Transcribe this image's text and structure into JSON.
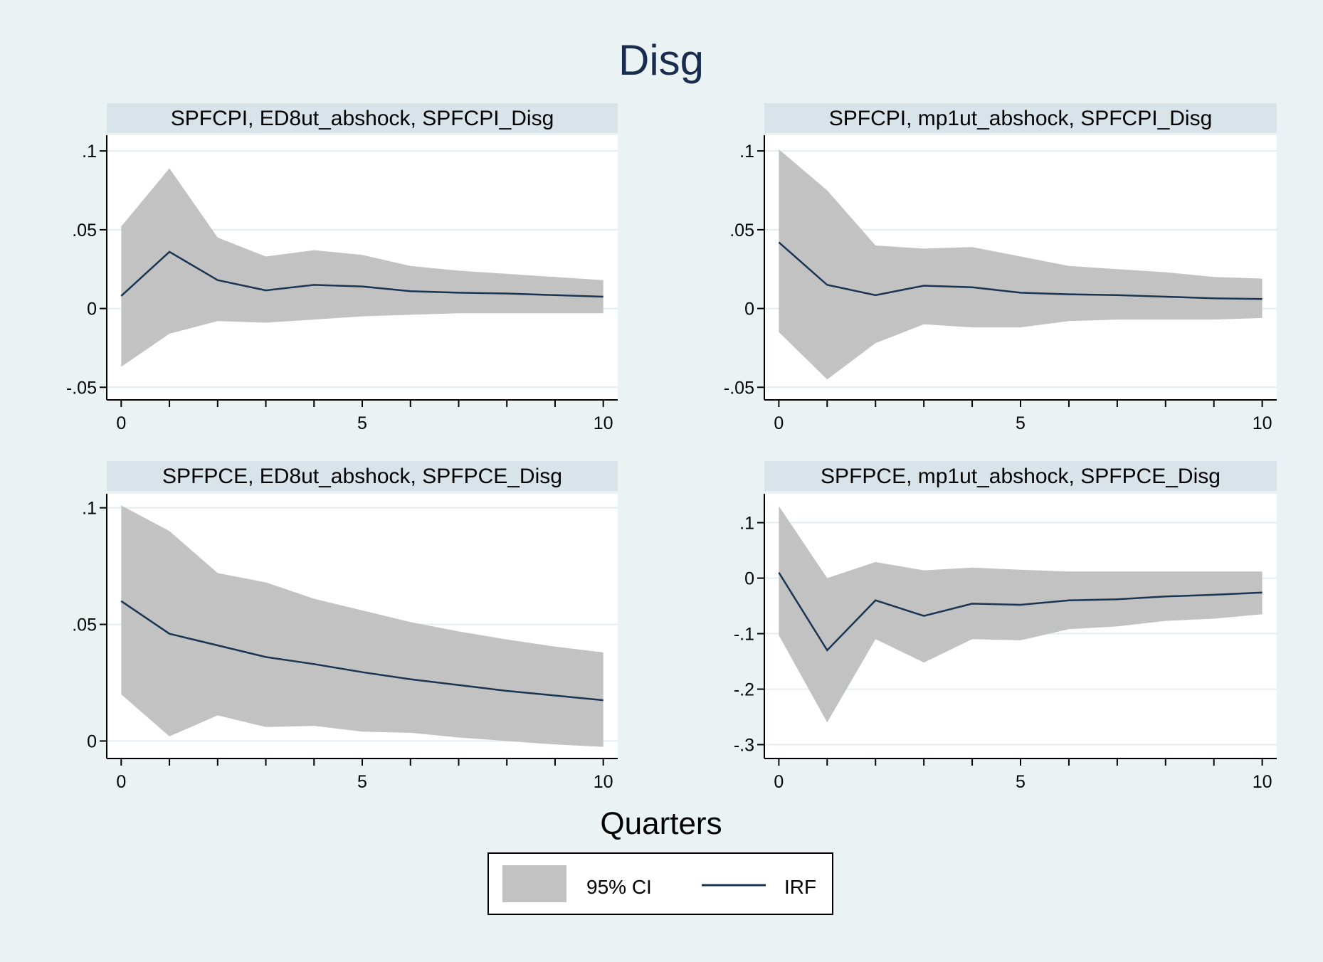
{
  "figure": {
    "title": "Disg",
    "xlabel": "Quarters",
    "legend": {
      "ci_label": "95% CI",
      "irf_label": "IRF"
    }
  },
  "colors": {
    "background": "#eaf2f3",
    "plot_background": "#ffffff",
    "panel_header": "#d8e4ea",
    "ci_band": "#c2c2c2",
    "irf_line": "#1a3552",
    "gridline": "#e4ecef",
    "title": "#1a2c4e"
  },
  "chart_data": [
    {
      "type": "line",
      "title": "SPFCPI, ED8ut_abshock, SPFCPI_Disg",
      "x": [
        0,
        1,
        2,
        3,
        4,
        5,
        6,
        7,
        8,
        9,
        10
      ],
      "series": [
        {
          "name": "IRF",
          "values": [
            0.008,
            0.036,
            0.018,
            0.0115,
            0.015,
            0.014,
            0.011,
            0.01,
            0.0095,
            0.0085,
            0.0075
          ]
        },
        {
          "name": "95% CI",
          "lower": [
            -0.037,
            -0.016,
            -0.008,
            -0.009,
            -0.007,
            -0.005,
            -0.004,
            -0.003,
            -0.003,
            -0.003,
            -0.003
          ],
          "upper": [
            0.052,
            0.089,
            0.045,
            0.033,
            0.037,
            0.034,
            0.027,
            0.024,
            0.022,
            0.02,
            0.018
          ]
        }
      ],
      "xticks": [
        0,
        1,
        2,
        3,
        4,
        5,
        6,
        7,
        8,
        9,
        10
      ],
      "xtick_labels": [
        {
          "v": 0,
          "t": "0"
        },
        {
          "v": 5,
          "t": "5"
        },
        {
          "v": 10,
          "t": "10"
        }
      ],
      "yticks": [
        {
          "v": 0.1,
          "t": ".1"
        },
        {
          "v": 0.05,
          "t": ".05"
        },
        {
          "v": 0,
          "t": "0"
        },
        {
          "v": -0.05,
          "t": "-.05"
        }
      ],
      "ylim": [
        -0.058,
        0.11
      ],
      "xlim": [
        -0.3,
        10.3
      ]
    },
    {
      "type": "line",
      "title": "SPFCPI, mp1ut_abshock, SPFCPI_Disg",
      "x": [
        0,
        1,
        2,
        3,
        4,
        5,
        6,
        7,
        8,
        9,
        10
      ],
      "series": [
        {
          "name": "IRF",
          "values": [
            0.042,
            0.015,
            0.0085,
            0.0145,
            0.0135,
            0.01,
            0.009,
            0.0085,
            0.0075,
            0.0065,
            0.006
          ]
        },
        {
          "name": "95% CI",
          "lower": [
            -0.015,
            -0.045,
            -0.022,
            -0.01,
            -0.012,
            -0.012,
            -0.008,
            -0.007,
            -0.007,
            -0.007,
            -0.006
          ],
          "upper": [
            0.101,
            0.075,
            0.04,
            0.038,
            0.039,
            0.033,
            0.027,
            0.025,
            0.023,
            0.02,
            0.019
          ]
        }
      ],
      "xticks": [
        0,
        1,
        2,
        3,
        4,
        5,
        6,
        7,
        8,
        9,
        10
      ],
      "xtick_labels": [
        {
          "v": 0,
          "t": "0"
        },
        {
          "v": 5,
          "t": "5"
        },
        {
          "v": 10,
          "t": "10"
        }
      ],
      "yticks": [
        {
          "v": 0.1,
          "t": ".1"
        },
        {
          "v": 0.05,
          "t": ".05"
        },
        {
          "v": 0,
          "t": "0"
        },
        {
          "v": -0.05,
          "t": "-.05"
        }
      ],
      "ylim": [
        -0.058,
        0.11
      ],
      "xlim": [
        -0.3,
        10.3
      ]
    },
    {
      "type": "line",
      "title": "SPFPCE, ED8ut_abshock, SPFPCE_Disg",
      "x": [
        0,
        1,
        2,
        3,
        4,
        5,
        6,
        7,
        8,
        9,
        10
      ],
      "series": [
        {
          "name": "IRF",
          "values": [
            0.06,
            0.046,
            0.041,
            0.036,
            0.033,
            0.0295,
            0.0265,
            0.024,
            0.0215,
            0.0195,
            0.0175
          ]
        },
        {
          "name": "95% CI",
          "lower": [
            0.02,
            0.002,
            0.011,
            0.006,
            0.0065,
            0.004,
            0.0035,
            0.0015,
            0.0,
            -0.0015,
            -0.0025
          ],
          "upper": [
            0.101,
            0.09,
            0.072,
            0.068,
            0.061,
            0.056,
            0.051,
            0.047,
            0.0435,
            0.0405,
            0.038
          ]
        }
      ],
      "xticks": [
        0,
        1,
        2,
        3,
        4,
        5,
        6,
        7,
        8,
        9,
        10
      ],
      "xtick_labels": [
        {
          "v": 0,
          "t": "0"
        },
        {
          "v": 5,
          "t": "5"
        },
        {
          "v": 10,
          "t": "10"
        }
      ],
      "yticks": [
        {
          "v": 0.1,
          "t": ".1"
        },
        {
          "v": 0.05,
          "t": ".05"
        },
        {
          "v": 0,
          "t": "0"
        }
      ],
      "ylim": [
        -0.0075,
        0.106
      ],
      "xlim": [
        -0.3,
        10.3
      ]
    },
    {
      "type": "line",
      "title": "SPFPCE, mp1ut_abshock, SPFPCE_Disg",
      "x": [
        0,
        1,
        2,
        3,
        4,
        5,
        6,
        7,
        8,
        9,
        10
      ],
      "series": [
        {
          "name": "IRF",
          "values": [
            0.01,
            -0.13,
            -0.04,
            -0.068,
            -0.046,
            -0.048,
            -0.04,
            -0.038,
            -0.033,
            -0.03,
            -0.026
          ]
        },
        {
          "name": "95% CI",
          "lower": [
            -0.103,
            -0.26,
            -0.11,
            -0.152,
            -0.11,
            -0.112,
            -0.092,
            -0.087,
            -0.077,
            -0.073,
            -0.065
          ],
          "upper": [
            0.13,
            0.0,
            0.029,
            0.014,
            0.019,
            0.015,
            0.012,
            0.012,
            0.012,
            0.012,
            0.012
          ]
        }
      ],
      "xticks": [
        0,
        1,
        2,
        3,
        4,
        5,
        6,
        7,
        8,
        9,
        10
      ],
      "xtick_labels": [
        {
          "v": 0,
          "t": "0"
        },
        {
          "v": 5,
          "t": "5"
        },
        {
          "v": 10,
          "t": "10"
        }
      ],
      "yticks": [
        {
          "v": 0.1,
          "t": ".1"
        },
        {
          "v": 0,
          "t": "0"
        },
        {
          "v": -0.1,
          "t": "-.1"
        },
        {
          "v": -0.2,
          "t": "-.2"
        },
        {
          "v": -0.3,
          "t": "-.3"
        }
      ],
      "ylim": [
        -0.325,
        0.152
      ],
      "xlim": [
        -0.3,
        10.3
      ]
    }
  ]
}
